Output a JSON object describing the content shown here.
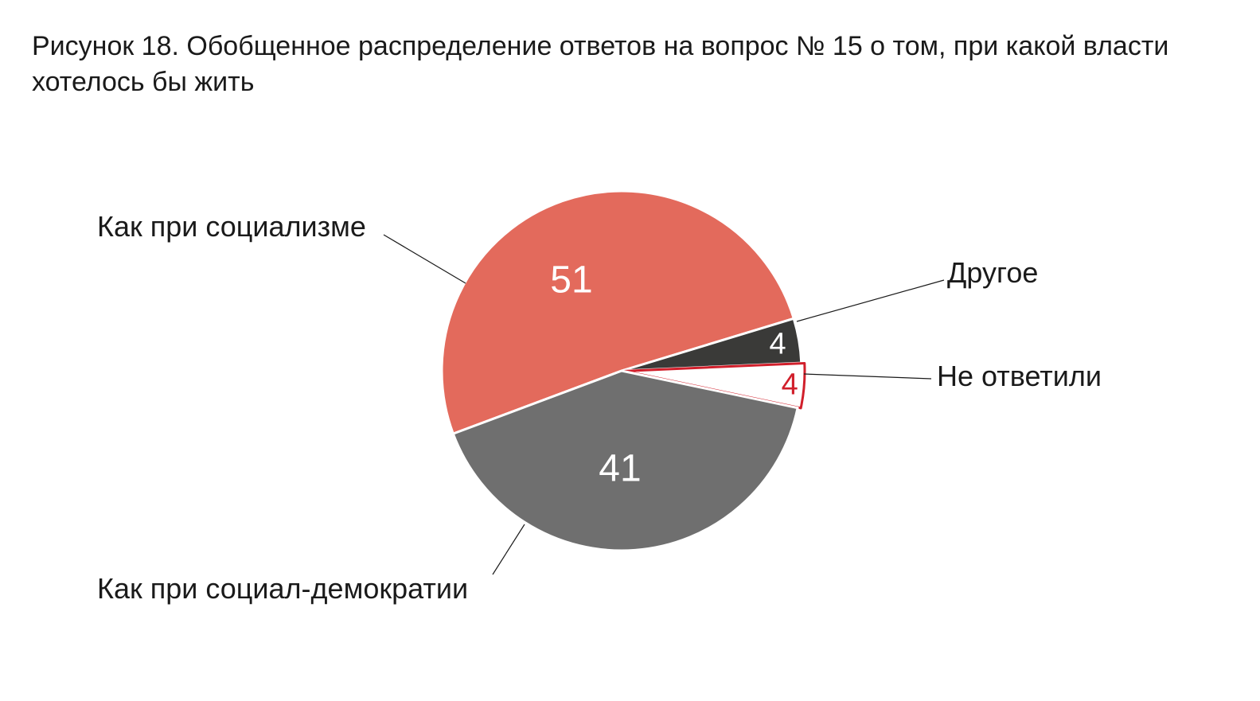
{
  "title": "Рисунок 18. Обобщенное распределение ответов на вопрос № 15 о том, при какой власти хотелось бы жить",
  "colors": {
    "socialism": "#e36a5c",
    "social_democracy": "#6f6f6f",
    "other": "#3a3a38",
    "no_answer_fill": "#ffffff",
    "no_answer_stroke": "#d11f2b"
  },
  "chart_data": {
    "type": "pie",
    "title": "Рисунок 18. Обобщенное распределение ответов на вопрос № 15 о том, при какой власти хотелось бы жить",
    "legend": "none",
    "slices": [
      {
        "label": "Как при социализме",
        "value": 51,
        "data_label": "51",
        "color": "#e36a5c"
      },
      {
        "label": "Другое",
        "value": 4,
        "data_label": "4",
        "color": "#3a3a38"
      },
      {
        "label": "Не ответили",
        "value": 4,
        "data_label": "4",
        "color": "#ffffff",
        "stroke": "#d11f2b"
      },
      {
        "label": "Как при социал-демократии",
        "value": 41,
        "data_label": "41",
        "color": "#6f6f6f"
      }
    ]
  }
}
